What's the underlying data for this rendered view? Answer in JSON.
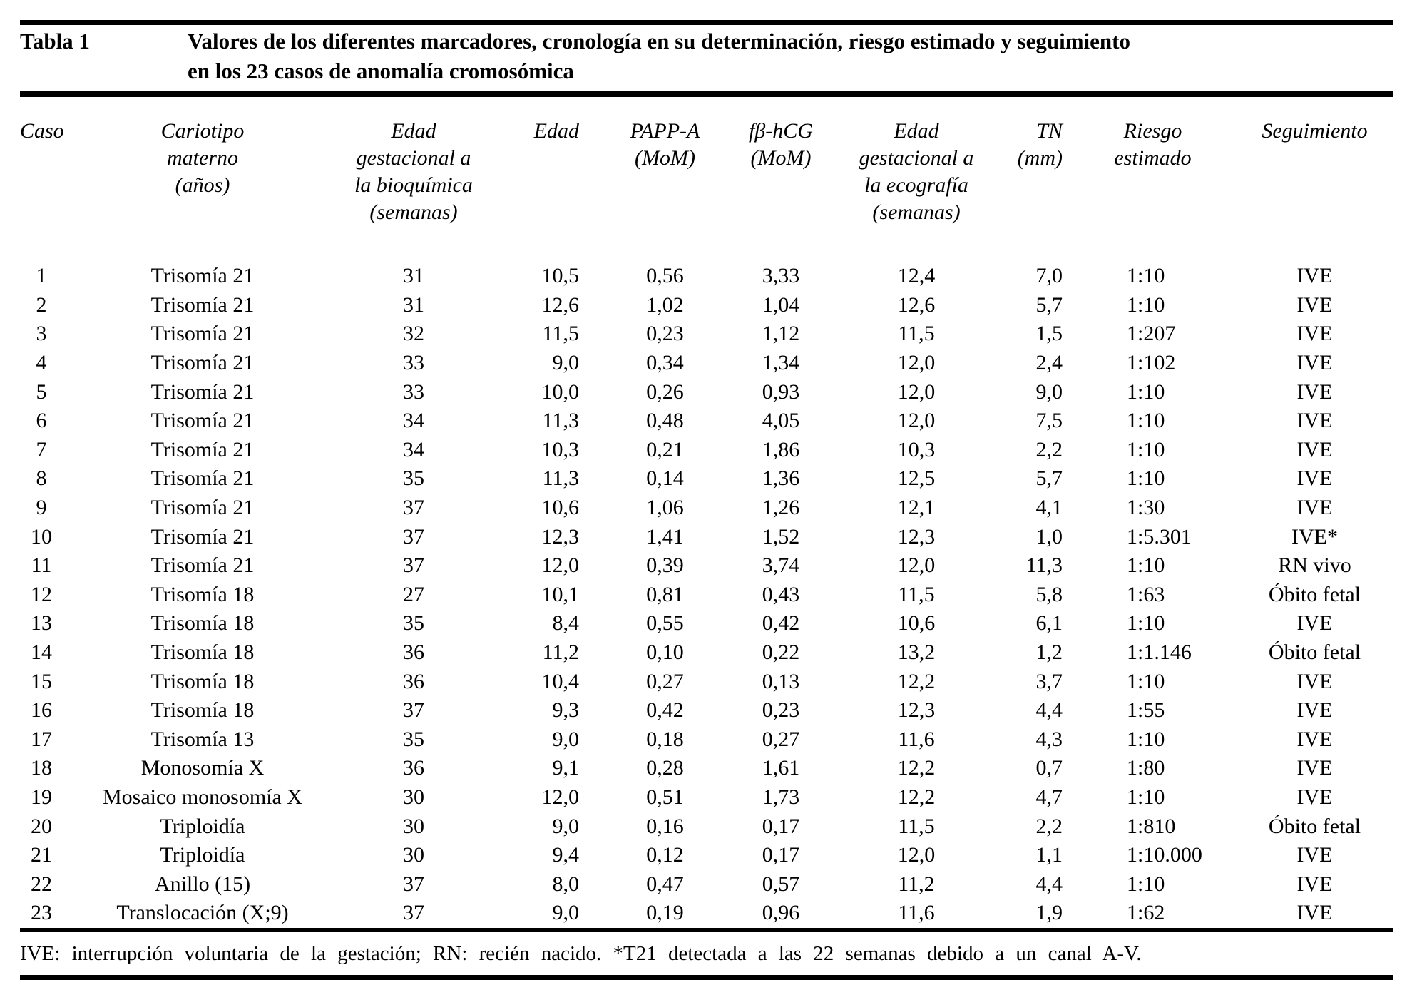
{
  "table": {
    "label": "Tabla 1",
    "title_line1": "Valores de los diferentes marcadores, cronología en su determinación, riesgo estimado y seguimiento",
    "title_line2": "en los 23 casos de anomalía cromosómica",
    "columns": [
      {
        "lines": [
          "Caso"
        ]
      },
      {
        "lines": [
          "Cariotipo",
          "materno",
          "(años)"
        ]
      },
      {
        "lines": [
          "Edad",
          "gestacional a",
          "la bioquímica",
          "(semanas)"
        ]
      },
      {
        "lines": [
          "Edad"
        ]
      },
      {
        "lines": [
          "PAPP-A",
          "(MoM)"
        ]
      },
      {
        "lines": [
          "fβ-hCG",
          "(MoM)"
        ]
      },
      {
        "lines": [
          "Edad",
          "gestacional a",
          "la ecografía",
          "(semanas)"
        ]
      },
      {
        "lines": [
          "TN",
          "(mm)"
        ]
      },
      {
        "lines": [
          "Riesgo",
          "estimado"
        ]
      },
      {
        "lines": [
          "Seguimiento"
        ]
      }
    ],
    "rows": [
      [
        "1",
        "Trisomía 21",
        "31",
        "10,5",
        "0,56",
        "3,33",
        "12,4",
        "7,0",
        "1:10",
        "IVE"
      ],
      [
        "2",
        "Trisomía 21",
        "31",
        "12,6",
        "1,02",
        "1,04",
        "12,6",
        "5,7",
        "1:10",
        "IVE"
      ],
      [
        "3",
        "Trisomía 21",
        "32",
        "11,5",
        "0,23",
        "1,12",
        "11,5",
        "1,5",
        "1:207",
        "IVE"
      ],
      [
        "4",
        "Trisomía 21",
        "33",
        "9,0",
        "0,34",
        "1,34",
        "12,0",
        "2,4",
        "1:102",
        "IVE"
      ],
      [
        "5",
        "Trisomía 21",
        "33",
        "10,0",
        "0,26",
        "0,93",
        "12,0",
        "9,0",
        "1:10",
        "IVE"
      ],
      [
        "6",
        "Trisomía 21",
        "34",
        "11,3",
        "0,48",
        "4,05",
        "12,0",
        "7,5",
        "1:10",
        "IVE"
      ],
      [
        "7",
        "Trisomía 21",
        "34",
        "10,3",
        "0,21",
        "1,86",
        "10,3",
        "2,2",
        "1:10",
        "IVE"
      ],
      [
        "8",
        "Trisomía 21",
        "35",
        "11,3",
        "0,14",
        "1,36",
        "12,5",
        "5,7",
        "1:10",
        "IVE"
      ],
      [
        "9",
        "Trisomía 21",
        "37",
        "10,6",
        "1,06",
        "1,26",
        "12,1",
        "4,1",
        "1:30",
        "IVE"
      ],
      [
        "10",
        "Trisomía 21",
        "37",
        "12,3",
        "1,41",
        "1,52",
        "12,3",
        "1,0",
        "1:5.301",
        "IVE*"
      ],
      [
        "11",
        "Trisomía 21",
        "37",
        "12,0",
        "0,39",
        "3,74",
        "12,0",
        "11,3",
        "1:10",
        "RN vivo"
      ],
      [
        "12",
        "Trisomía 18",
        "27",
        "10,1",
        "0,81",
        "0,43",
        "11,5",
        "5,8",
        "1:63",
        "Óbito fetal"
      ],
      [
        "13",
        "Trisomía 18",
        "35",
        "8,4",
        "0,55",
        "0,42",
        "10,6",
        "6,1",
        "1:10",
        "IVE"
      ],
      [
        "14",
        "Trisomía 18",
        "36",
        "11,2",
        "0,10",
        "0,22",
        "13,2",
        "1,2",
        "1:1.146",
        "Óbito fetal"
      ],
      [
        "15",
        "Trisomía 18",
        "36",
        "10,4",
        "0,27",
        "0,13",
        "12,2",
        "3,7",
        "1:10",
        "IVE"
      ],
      [
        "16",
        "Trisomía 18",
        "37",
        "9,3",
        "0,42",
        "0,23",
        "12,3",
        "4,4",
        "1:55",
        "IVE"
      ],
      [
        "17",
        "Trisomía 13",
        "35",
        "9,0",
        "0,18",
        "0,27",
        "11,6",
        "4,3",
        "1:10",
        "IVE"
      ],
      [
        "18",
        "Monosomía X",
        "36",
        "9,1",
        "0,28",
        "1,61",
        "12,2",
        "0,7",
        "1:80",
        "IVE"
      ],
      [
        "19",
        "Mosaico monosomía X",
        "30",
        "12,0",
        "0,51",
        "1,73",
        "12,2",
        "4,7",
        "1:10",
        "IVE"
      ],
      [
        "20",
        "Triploidía",
        "30",
        "9,0",
        "0,16",
        "0,17",
        "11,5",
        "2,2",
        "1:810",
        "Óbito fetal"
      ],
      [
        "21",
        "Triploidía",
        "30",
        "9,4",
        "0,12",
        "0,17",
        "12,0",
        "1,1",
        "1:10.000",
        "IVE"
      ],
      [
        "22",
        "Anillo (15)",
        "37",
        "8,0",
        "0,47",
        "0,57",
        "11,2",
        "4,4",
        "1:10",
        "IVE"
      ],
      [
        "23",
        "Translocación (X;9)",
        "37",
        "9,0",
        "0,19",
        "0,96",
        "11,6",
        "1,9",
        "1:62",
        "IVE"
      ]
    ],
    "footnote": "IVE: interrupción voluntaria de la gestación; RN: recién nacido. *T21 detectada a las 22 semanas debido a un canal A-V."
  }
}
